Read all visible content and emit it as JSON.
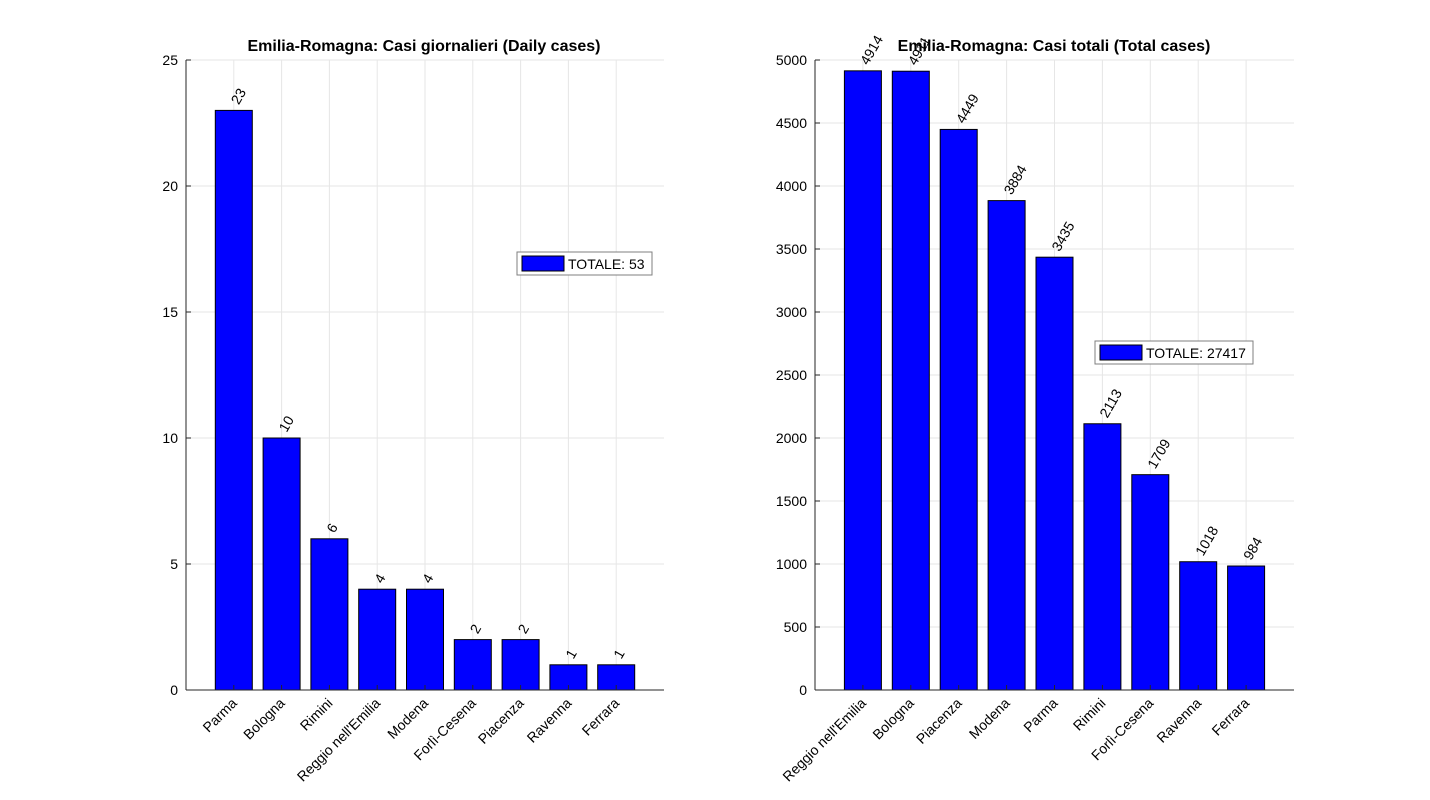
{
  "chart_data": [
    {
      "type": "bar",
      "title": "Emilia-Romagna: Casi giornalieri (Daily cases)",
      "categories": [
        "Parma",
        "Bologna",
        "Rimini",
        "Reggio nell'Emilia",
        "Modena",
        "Forlì-Cesena",
        "Piacenza",
        "Ravenna",
        "Ferrara"
      ],
      "values": [
        23,
        10,
        6,
        4,
        4,
        2,
        2,
        1,
        1
      ],
      "ylim": [
        0,
        25
      ],
      "yticks": [
        0,
        5,
        10,
        15,
        20,
        25
      ],
      "grid": true,
      "legend": {
        "label": "TOTALE: 53",
        "position": "right"
      },
      "bar_color": "#0000ff"
    },
    {
      "type": "bar",
      "title": "Emilia-Romagna: Casi totali (Total cases)",
      "categories": [
        "Reggio nell'Emilia",
        "Bologna",
        "Piacenza",
        "Modena",
        "Parma",
        "Rimini",
        "Forlì-Cesena",
        "Ravenna",
        "Ferrara"
      ],
      "values": [
        4914,
        4911,
        4449,
        3884,
        3435,
        2113,
        1709,
        1018,
        984
      ],
      "ylim": [
        0,
        5000
      ],
      "yticks": [
        0,
        500,
        1000,
        1500,
        2000,
        2500,
        3000,
        3500,
        4000,
        4500,
        5000
      ],
      "grid": true,
      "legend": {
        "label": "TOTALE: 27417",
        "position": "right"
      },
      "bar_color": "#0000ff"
    }
  ]
}
